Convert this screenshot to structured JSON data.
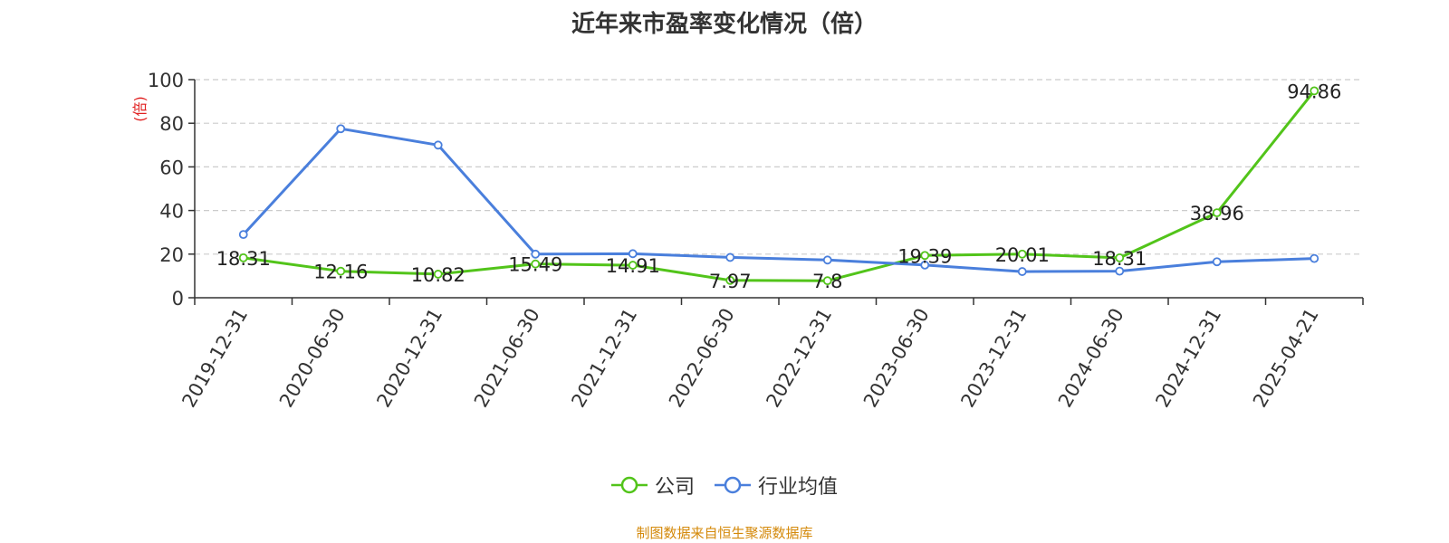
{
  "title": "近年来市盈率变化情况（倍）",
  "source": "制图数据来自恒生聚源数据库",
  "colors": {
    "company": "#52c41a",
    "industry": "#4a7fdc",
    "source": "#d4890a",
    "yunit": "#e02020",
    "grid": "#cccccc",
    "axis": "#333333"
  },
  "chart_data": {
    "type": "line",
    "title": "近年来市盈率变化情况（倍）",
    "ylabel": "(倍)",
    "ylim": [
      0,
      100
    ],
    "yticks": [
      0,
      20,
      40,
      60,
      80,
      100
    ],
    "grid": true,
    "legend_position": "bottom",
    "categories": [
      "2019-12-31",
      "2020-06-30",
      "2020-12-31",
      "2021-06-30",
      "2021-12-31",
      "2022-06-30",
      "2022-12-31",
      "2023-06-30",
      "2023-12-31",
      "2024-06-30",
      "2024-12-31",
      "2025-04-21"
    ],
    "series": [
      {
        "name": "公司",
        "color": "#52c41a",
        "values": [
          18.31,
          12.16,
          10.82,
          15.49,
          14.91,
          7.97,
          7.8,
          19.39,
          20.01,
          18.31,
          38.96,
          94.86
        ],
        "labels": [
          "18.31",
          "12.16",
          "10.82",
          "15.49",
          "14.91",
          "7.97",
          "7.8",
          "19.39",
          "20.01",
          "18.31",
          "38.96",
          "94.86"
        ]
      },
      {
        "name": "行业均值",
        "color": "#4a7fdc",
        "values": [
          29,
          77.5,
          70,
          20,
          20.2,
          18.5,
          17.3,
          15,
          12,
          12.2,
          16.5,
          18
        ]
      }
    ]
  }
}
